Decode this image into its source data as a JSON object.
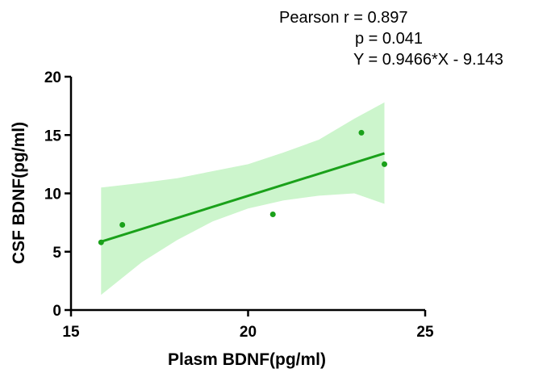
{
  "chart_data": {
    "type": "scatter",
    "xlabel": "Plasm BDNF(pg/ml)",
    "ylabel": "CSF BDNF(pg/ml)",
    "xlim": [
      15,
      25
    ],
    "ylim": [
      0,
      20
    ],
    "x_ticks": [
      "15",
      "20",
      "25"
    ],
    "y_ticks": [
      "0",
      "5",
      "10",
      "15",
      "20"
    ],
    "points": [
      {
        "x": 15.85,
        "y": 5.8
      },
      {
        "x": 16.45,
        "y": 7.3
      },
      {
        "x": 20.7,
        "y": 8.2
      },
      {
        "x": 23.2,
        "y": 15.2
      },
      {
        "x": 23.85,
        "y": 12.5
      }
    ],
    "regression": {
      "slope": 0.9466,
      "intercept": -9.143,
      "x_range": [
        15.85,
        23.85
      ]
    },
    "confidence_band": [
      {
        "x": 15.85,
        "lower": 1.3,
        "upper": 10.5
      },
      {
        "x": 17.0,
        "lower": 4.1,
        "upper": 10.9
      },
      {
        "x": 18.0,
        "lower": 6.0,
        "upper": 11.3
      },
      {
        "x": 19.0,
        "lower": 7.6,
        "upper": 11.9
      },
      {
        "x": 20.0,
        "lower": 8.7,
        "upper": 12.5
      },
      {
        "x": 21.0,
        "lower": 9.4,
        "upper": 13.5
      },
      {
        "x": 22.0,
        "lower": 9.8,
        "upper": 14.6
      },
      {
        "x": 23.0,
        "lower": 10.0,
        "upper": 16.4
      },
      {
        "x": 23.85,
        "lower": 9.1,
        "upper": 17.8
      }
    ],
    "stats": {
      "pearson": "Pearson r  = 0.897",
      "p": "p = 0.041",
      "equation": "Y = 0.9466*X - 9.143"
    },
    "colors": {
      "points": "#1aa11a",
      "line": "#1aa11a",
      "band": "#ccf5cc"
    },
    "grid": false
  }
}
